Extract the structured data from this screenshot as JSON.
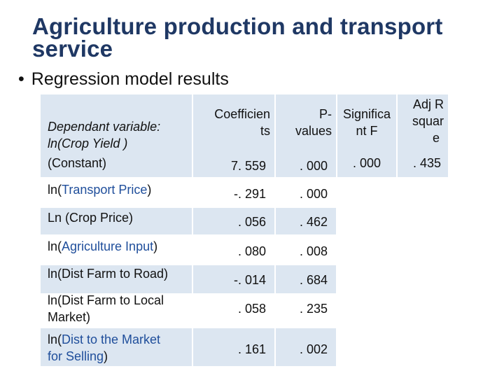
{
  "slide": {
    "title": "Agriculture production and transport service",
    "bullet": "Regression model results"
  },
  "table": {
    "header": {
      "dep": [
        "Dependant variable:",
        "ln(Crop Yield )"
      ],
      "coef": [
        "Coefficien",
        "ts"
      ],
      "pval": [
        "P-",
        "values"
      ],
      "sig": [
        "Significa",
        "nt F"
      ],
      "adj": [
        "Adj R",
        "squar",
        "e"
      ]
    },
    "rows": [
      {
        "label": "(Constant)",
        "coef": "7. 559",
        "pval": ". 000",
        "sig": ". 000",
        "adj": ". 435"
      },
      {
        "label_pre": "ln(",
        "label_blue": "Transport Price",
        "label_post": ")",
        "coef": "-. 291",
        "pval": ". 000"
      },
      {
        "label": "Ln (Crop Price)",
        "coef": ". 056",
        "pval": ". 462"
      },
      {
        "label_pre": "ln(",
        "label_blue": "Agriculture Input",
        "label_post": ")",
        "coef": ". 080",
        "pval": ". 008"
      },
      {
        "label": "ln(Dist Farm to Road)",
        "coef": "-. 014",
        "pval": ". 684"
      },
      {
        "label_lines": [
          "ln(Dist Farm to Local",
          "Market)"
        ],
        "coef": ". 058",
        "pval": ". 235"
      },
      {
        "label_line1_pre": "ln(",
        "label_line1_blue": "Dist to the Market",
        "label_line2_blue": "for Selling",
        "label_line2_post": ")",
        "coef": ". 161",
        "pval": ". 002"
      }
    ]
  },
  "colors": {
    "title": "#1f3864",
    "shade": "#dce6f1",
    "accent_text": "#1f4e9b"
  }
}
